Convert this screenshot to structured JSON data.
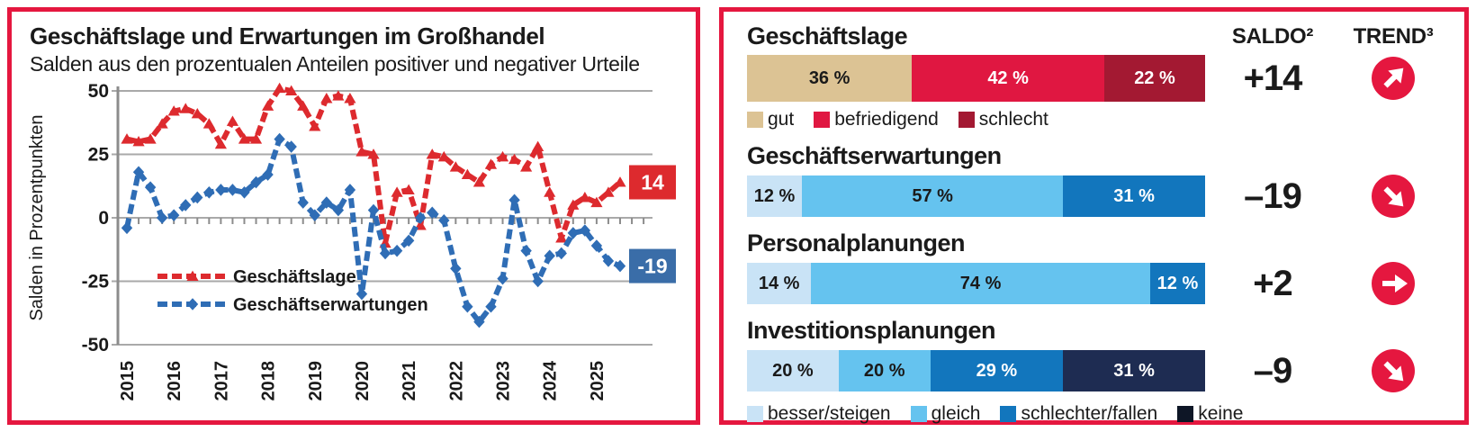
{
  "colors": {
    "panel_border": "#e5173f",
    "trend_circle": "#e5173f",
    "grid": "#a9a9a9",
    "axis": "#8c8c8c"
  },
  "chart_data": {
    "type": "line",
    "title": "Geschäftslage und Erwartungen im Großhandel",
    "subtitle": "Salden aus den prozentualen Anteilen positiver und negativer Urteile",
    "ylabel": "Salden in Prozentpunkten",
    "ylim": [
      -50,
      50
    ],
    "yticks": [
      50,
      25,
      0,
      -25,
      -50
    ],
    "x_years": [
      2015,
      2016,
      2017,
      2018,
      2019,
      2020,
      2021,
      2022,
      2023,
      2024,
      2025
    ],
    "x_frequency": "quarterly",
    "grid": true,
    "legend_position": "inside-bottom-left",
    "series": [
      {
        "name": "Geschäftslage",
        "color": "#dd2a2e",
        "marker": "triangle",
        "end_label": "14",
        "end_label_bg": "#dd2a2e",
        "values": [
          31,
          30,
          31,
          37,
          42,
          43,
          41,
          37,
          29,
          38,
          31,
          31,
          44,
          51,
          50,
          44,
          36,
          47,
          48,
          47,
          26,
          25,
          -10,
          10,
          11,
          -3,
          25,
          24,
          20,
          17,
          14,
          21,
          24,
          23,
          20,
          28,
          10,
          -8,
          5,
          8,
          6,
          10,
          14
        ]
      },
      {
        "name": "Geschäftserwartungen",
        "color": "#2f6db5",
        "marker": "diamond",
        "end_label": "-19",
        "end_label_bg": "#3a6da8",
        "values": [
          -4,
          18,
          12,
          0,
          1,
          5,
          8,
          10,
          11,
          11,
          10,
          14,
          17,
          31,
          28,
          6,
          1,
          6,
          3,
          11,
          -30,
          3,
          -14,
          -13,
          -9,
          0,
          2,
          -1,
          -20,
          -35,
          -41,
          -35,
          -24,
          7,
          -13,
          -25,
          -15,
          -14,
          -6,
          -5,
          -11,
          -17,
          -19
        ]
      }
    ]
  },
  "right_panel": {
    "saldo_header": "SALDO²",
    "trend_header": "TREND³",
    "rows": [
      {
        "heading": "Geschäftslage",
        "saldo": "+14",
        "trend": "up-right",
        "segments": [
          {
            "label": "36 %",
            "pct": 36,
            "color": "#dcc394",
            "text": "#1a1a1a"
          },
          {
            "label": "42 %",
            "pct": 42,
            "color": "#e01741",
            "text": "#ffffff"
          },
          {
            "label": "22 %",
            "pct": 22,
            "color": "#a31932",
            "text": "#ffffff"
          }
        ],
        "legend": [
          {
            "label": "gut",
            "color": "#dcc394"
          },
          {
            "label": "befriedigend",
            "color": "#e01741"
          },
          {
            "label": "schlecht",
            "color": "#a31932"
          }
        ]
      },
      {
        "heading": "Geschäftserwartungen",
        "saldo": "–19",
        "trend": "down-right",
        "segments": [
          {
            "label": "12 %",
            "pct": 12,
            "color": "#c9e3f6",
            "text": "#1a1a1a"
          },
          {
            "label": "57 %",
            "pct": 57,
            "color": "#65c3ef",
            "text": "#1a1a1a"
          },
          {
            "label": "31 %",
            "pct": 31,
            "color": "#1276bd",
            "text": "#ffffff"
          }
        ]
      },
      {
        "heading": "Personalplanungen",
        "saldo": "+2",
        "trend": "right",
        "segments": [
          {
            "label": "14 %",
            "pct": 14,
            "color": "#c9e3f6",
            "text": "#1a1a1a"
          },
          {
            "label": "74 %",
            "pct": 74,
            "color": "#65c3ef",
            "text": "#1a1a1a"
          },
          {
            "label": "12 %",
            "pct": 12,
            "color": "#1276bd",
            "text": "#ffffff"
          }
        ]
      },
      {
        "heading": "Investitionsplanungen",
        "saldo": "–9",
        "trend": "down-right",
        "segments": [
          {
            "label": "20 %",
            "pct": 20,
            "color": "#c9e3f6",
            "text": "#1a1a1a"
          },
          {
            "label": "20 %",
            "pct": 20,
            "color": "#65c3ef",
            "text": "#1a1a1a"
          },
          {
            "label": "29 %",
            "pct": 29,
            "color": "#1276bd",
            "text": "#ffffff"
          },
          {
            "label": "31 %",
            "pct": 31,
            "color": "#1e2c52",
            "text": "#ffffff"
          }
        ]
      }
    ],
    "bottom_legend": [
      {
        "label": "besser/steigen",
        "color": "#c9e3f6"
      },
      {
        "label": "gleich",
        "color": "#65c3ef"
      },
      {
        "label": "schlechter/fallen",
        "color": "#1276bd"
      },
      {
        "label": "keine",
        "color": "#0e1626"
      }
    ]
  }
}
